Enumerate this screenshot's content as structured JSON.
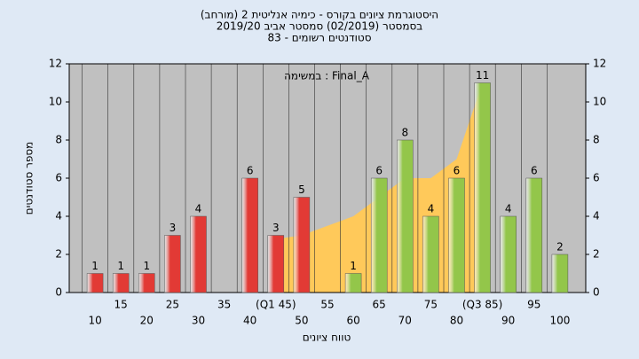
{
  "chart_data": {
    "type": "bar",
    "title": "(היסטוגרמת ציונים בקורס - כימיה אנליטית 2 (מורחב",
    "subtitle": "בסמסטר  (02/2019)  סמסטר אביב 2019/20",
    "subtitle2": "סטודנטים רשומים - 83",
    "annotation": "במשימה : Final_A",
    "x_label": "טווח ציונים",
    "y_label": "מספר סטודנטים",
    "x": [
      10,
      15,
      20,
      25,
      30,
      35,
      40,
      45,
      50,
      55,
      60,
      65,
      70,
      75,
      80,
      85,
      90,
      95,
      100
    ],
    "series": [
      {
        "color": "#e23a35",
        "values": [
          1,
          1,
          1,
          3,
          4,
          null,
          6,
          3,
          5,
          null,
          null,
          null,
          null,
          null,
          null,
          null,
          null,
          null,
          null
        ]
      },
      {
        "color": "#93c64a",
        "values": [
          null,
          null,
          null,
          null,
          null,
          null,
          null,
          null,
          null,
          null,
          1,
          6,
          8,
          4,
          6,
          11,
          4,
          6,
          2
        ]
      }
    ],
    "area": {
      "color": "#ffc95a",
      "x": [
        45,
        50,
        55,
        60,
        65,
        70,
        75,
        80,
        85
      ],
      "values": [
        2.8,
        3,
        3.5,
        4,
        5,
        6,
        6,
        7,
        11
      ]
    },
    "xlim": [
      5,
      105
    ],
    "xticks": [
      10,
      15,
      20,
      25,
      30,
      35,
      40,
      {
        "value": 45,
        "label": "(Q1 45)"
      },
      50,
      55,
      60,
      65,
      70,
      75,
      80,
      {
        "value": 85,
        "label": "(Q3 85)"
      },
      90,
      95,
      100
    ],
    "ylim": [
      0,
      12
    ],
    "yticks": [
      0,
      2,
      4,
      6,
      8,
      10,
      12
    ],
    "grid": true
  }
}
